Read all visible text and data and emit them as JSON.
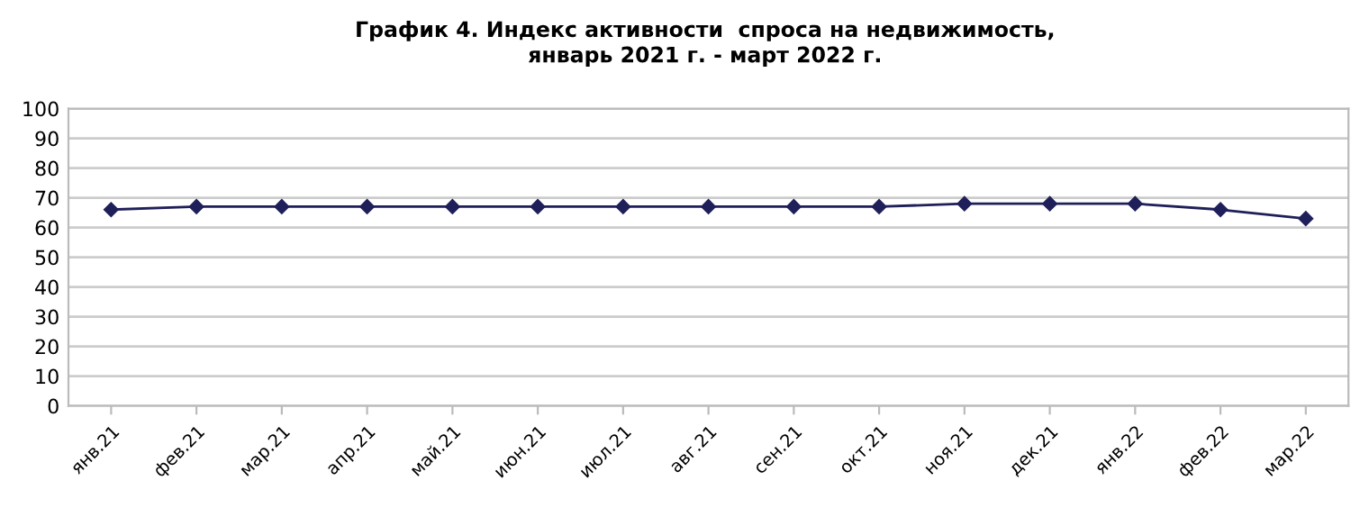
{
  "chart_data": {
    "type": "line",
    "title": "График 4. Индекс активности  спроса на недвижимость,\nянварь 2021 г. - март 2022 г.",
    "categories": [
      "янв.21",
      "фев.21",
      "мар.21",
      "апр.21",
      "май.21",
      "июн.21",
      "июл.21",
      "авг.21",
      "сен.21",
      "окт.21",
      "ноя.21",
      "дек.21",
      "янв.22",
      "фев.22",
      "мар.22"
    ],
    "series": [
      {
        "color": "#1f1f5a",
        "values": [
          66,
          67,
          67,
          67,
          67,
          67,
          67,
          67,
          67,
          67,
          68,
          68,
          68,
          66,
          63
        ]
      }
    ],
    "ylim": [
      0,
      100
    ],
    "yticks": [
      0,
      10,
      20,
      30,
      40,
      50,
      60,
      70,
      80,
      90,
      100
    ],
    "grid": "y",
    "marker": "diamond",
    "line_style": "solid",
    "legend": false
  }
}
